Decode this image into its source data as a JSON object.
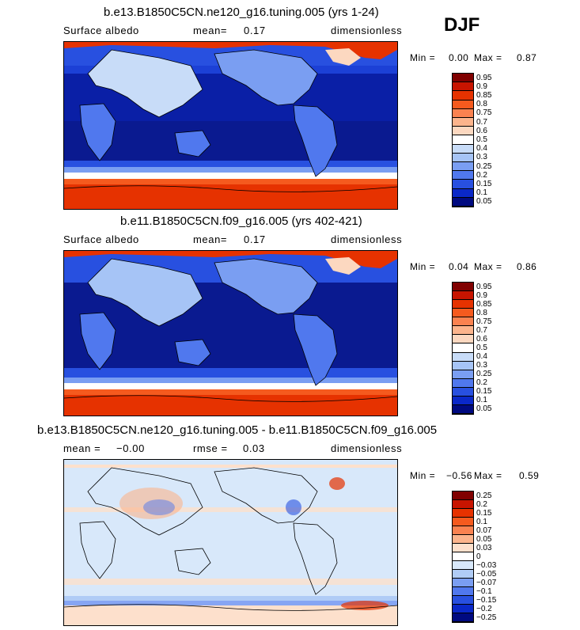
{
  "season": "DJF",
  "panels": [
    {
      "title": "b.e13.B1850C5CN.ne120_g16.tuning.005 (yrs 1-24)",
      "field": "Surface albedo",
      "stat_left": "mean=",
      "stat_value": "0.17",
      "units": "dimensionless",
      "min_label": "Min =",
      "min_value": "0.00",
      "max_label": "Max =",
      "max_value": "0.87",
      "colorbar": [
        "0.95",
        "0.9",
        "0.85",
        "0.8",
        "0.75",
        "0.7",
        "0.6",
        "0.5",
        "0.4",
        "0.3",
        "0.25",
        "0.2",
        "0.15",
        "0.1",
        "0.05"
      ]
    },
    {
      "title": "b.e11.B1850C5CN.f09_g16.005 (yrs 402-421)",
      "field": "Surface albedo",
      "stat_left": "mean=",
      "stat_value": "0.17",
      "units": "dimensionless",
      "min_label": "Min =",
      "min_value": "0.04",
      "max_label": "Max =",
      "max_value": "0.86",
      "colorbar": [
        "0.95",
        "0.9",
        "0.85",
        "0.8",
        "0.75",
        "0.7",
        "0.6",
        "0.5",
        "0.4",
        "0.3",
        "0.25",
        "0.2",
        "0.15",
        "0.1",
        "0.05"
      ]
    },
    {
      "title": "b.e13.B1850C5CN.ne120_g16.tuning.005 - b.e11.B1850C5CN.f09_g16.005",
      "mean_text": "mean =",
      "mean_value": "−0.00",
      "rmse_text": "rmse =",
      "rmse_value": "0.03",
      "units": "dimensionless",
      "min_label": "Min =",
      "min_value": "−0.56",
      "max_label": "Max =",
      "max_value": "0.59",
      "colorbar": [
        "0.25",
        "0.2",
        "0.15",
        "0.1",
        "0.07",
        "0.05",
        "0.03",
        "0",
        "−0.03",
        "−0.05",
        "−0.07",
        "−0.1",
        "−0.15",
        "−0.2",
        "−0.25"
      ]
    }
  ],
  "colors": {
    "abs_scale": [
      "#800000",
      "#c81400",
      "#e63200",
      "#f55a1e",
      "#fa8250",
      "#fcb48c",
      "#fcd8c0",
      "#ffffff",
      "#c8dcf8",
      "#a6c4f6",
      "#7a9ef2",
      "#5078ee",
      "#2850e0",
      "#0a28c8",
      "#000a80"
    ],
    "diff_scale": [
      "#800000",
      "#c81400",
      "#e63200",
      "#f55a1e",
      "#fa8250",
      "#fcb48c",
      "#fde0cc",
      "#ffffff",
      "#d8e8fa",
      "#b0ccf6",
      "#7a9ef2",
      "#5078ee",
      "#2850e0",
      "#0a28c8",
      "#000a80"
    ]
  }
}
